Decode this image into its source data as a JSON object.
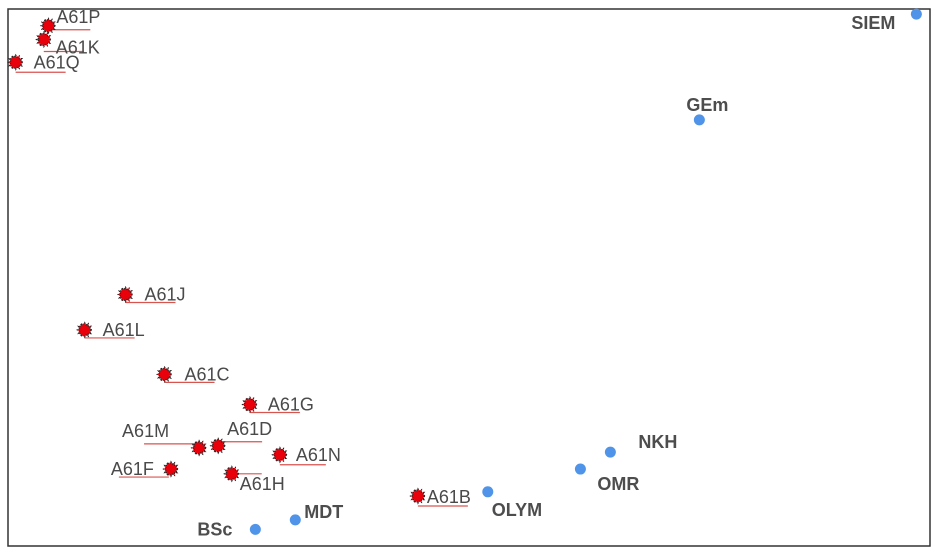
{
  "chart_data": {
    "type": "scatter",
    "title": "",
    "xlabel": "",
    "ylabel": "",
    "grid": false,
    "xlim": [
      0,
      1
    ],
    "ylim": [
      0,
      1
    ],
    "colors": {
      "class_marker": "#e8000b",
      "class_marker_outline": "#222222",
      "class_leader": "#d9534f",
      "org_marker": "#4f94e8",
      "frame": "#333333"
    },
    "series": [
      {
        "kind": "class",
        "points": [
          {
            "label": "A61P",
            "x": 0.04,
            "y": 0.974
          },
          {
            "label": "A61K",
            "x": 0.035,
            "y": 0.948
          },
          {
            "label": "A61Q",
            "x": 0.004,
            "y": 0.905
          },
          {
            "label": "A61J",
            "x": 0.125,
            "y": 0.466
          },
          {
            "label": "A61L",
            "x": 0.08,
            "y": 0.399
          },
          {
            "label": "A61C",
            "x": 0.168,
            "y": 0.315
          },
          {
            "label": "A61G",
            "x": 0.262,
            "y": 0.258
          },
          {
            "label": "A61D",
            "x": 0.227,
            "y": 0.18
          },
          {
            "label": "A61M",
            "x": 0.206,
            "y": 0.176
          },
          {
            "label": "A61N",
            "x": 0.295,
            "y": 0.163
          },
          {
            "label": "A61F",
            "x": 0.175,
            "y": 0.136
          },
          {
            "label": "A61H",
            "x": 0.242,
            "y": 0.127
          },
          {
            "label": "A61B",
            "x": 0.447,
            "y": 0.085
          }
        ]
      },
      {
        "kind": "organization",
        "points": [
          {
            "label": "SIEM",
            "x": 0.996,
            "y": 0.996
          },
          {
            "label": "GEm",
            "x": 0.757,
            "y": 0.796
          },
          {
            "label": "NKH",
            "x": 0.659,
            "y": 0.168
          },
          {
            "label": "OMR",
            "x": 0.626,
            "y": 0.136
          },
          {
            "label": "OLYM",
            "x": 0.524,
            "y": 0.093
          },
          {
            "label": "MDT",
            "x": 0.312,
            "y": 0.04
          },
          {
            "label": "BSc",
            "x": 0.268,
            "y": 0.022
          }
        ]
      }
    ]
  }
}
